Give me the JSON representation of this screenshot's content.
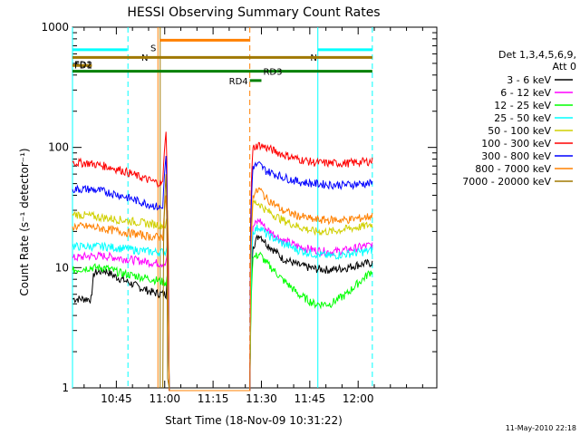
{
  "chart_data": {
    "type": "line",
    "title": "HESSI Observing Summary Count Rates",
    "xlabel": "Start Time (18-Nov-09 10:31:22)",
    "ylabel": "Count Rate (s⁻¹ detector⁻¹)",
    "yscale": "log",
    "ylim": [
      1,
      1000
    ],
    "xlim": [
      0,
      113
    ],
    "x_unit": "minutes after 10:31:22",
    "x_ticks": [
      {
        "x": 13.6,
        "label": "10:45"
      },
      {
        "x": 28.6,
        "label": "11:00"
      },
      {
        "x": 43.6,
        "label": "11:15"
      },
      {
        "x": 58.6,
        "label": "11:30"
      },
      {
        "x": 73.6,
        "label": "11:45"
      },
      {
        "x": 88.6,
        "label": "12:00"
      }
    ],
    "y_ticks": [
      {
        "y": 1,
        "label": "1"
      },
      {
        "y": 10,
        "label": "10"
      },
      {
        "y": 100,
        "label": "100"
      },
      {
        "y": 1000,
        "label": "1000"
      }
    ],
    "legend": {
      "header": [
        "Det 1,3,4,5,6,9,",
        "Att 0"
      ],
      "placement": "right"
    },
    "series": [
      {
        "name": "3 - 6 keV",
        "color": "#000000",
        "x": [
          0,
          6,
          6.5,
          10,
          13,
          20,
          25,
          29,
          29.5,
          30,
          55,
          56,
          58,
          60,
          65,
          70,
          75,
          80,
          85,
          88,
          93
        ],
        "y": [
          5.5,
          5.5,
          9,
          9.5,
          8.5,
          7,
          6.2,
          6.0,
          9,
          0,
          0,
          15,
          19,
          16,
          12,
          10.5,
          9.8,
          9.6,
          10,
          10.5,
          11
        ]
      },
      {
        "name": "6 - 12 keV",
        "color": "#ff00ff",
        "x": [
          0,
          5,
          10,
          15,
          20,
          25,
          29,
          29.5,
          30,
          55,
          56,
          58,
          60,
          65,
          70,
          75,
          80,
          85,
          90,
          93
        ],
        "y": [
          12,
          12.5,
          12.5,
          12,
          11.5,
          11,
          10.8,
          14,
          0,
          0,
          22,
          25,
          21,
          17,
          15,
          14,
          13.5,
          14,
          15,
          15.5
        ]
      },
      {
        "name": "12 - 25 keV",
        "color": "#00ff00",
        "x": [
          0,
          5,
          10,
          15,
          20,
          25,
          29,
          29.5,
          30,
          55,
          56,
          58,
          60,
          65,
          70,
          75,
          80,
          85,
          90,
          93
        ],
        "y": [
          9.5,
          10,
          10,
          9,
          8.5,
          8,
          7.5,
          9,
          0,
          0,
          12,
          13,
          11,
          8,
          6,
          5,
          5,
          6,
          8,
          9.5
        ]
      },
      {
        "name": "25 - 50 keV",
        "color": "#00ffff",
        "x": [
          0,
          5,
          10,
          15,
          20,
          25,
          29,
          29.5,
          30,
          55,
          56,
          58,
          60,
          65,
          70,
          75,
          80,
          85,
          90,
          93
        ],
        "y": [
          15,
          15,
          15,
          14.5,
          14,
          13.5,
          13.5,
          16,
          0,
          0,
          20,
          22,
          19,
          16,
          14,
          13,
          12.5,
          13,
          13.5,
          14
        ]
      },
      {
        "name": "50 - 100 keV",
        "color": "#d0d000",
        "x": [
          0,
          5,
          10,
          15,
          20,
          25,
          29,
          29.5,
          30,
          55,
          56,
          58,
          60,
          65,
          70,
          75,
          80,
          85,
          90,
          93
        ],
        "y": [
          28,
          27,
          26,
          25,
          24,
          23,
          22.5,
          30,
          0,
          0,
          35,
          34,
          30,
          25,
          22,
          20,
          20,
          21,
          22,
          23
        ]
      },
      {
        "name": "100 - 300 keV",
        "color": "#ff0000",
        "x": [
          0,
          5,
          10,
          15,
          20,
          25,
          28,
          29,
          29.5,
          30,
          55,
          56,
          58,
          60,
          65,
          70,
          75,
          80,
          85,
          90,
          93
        ],
        "y": [
          75,
          74,
          70,
          65,
          58,
          52,
          50,
          135,
          20,
          0,
          0,
          100,
          105,
          100,
          88,
          80,
          75,
          74,
          74,
          76,
          77
        ]
      },
      {
        "name": "300 - 800 keV",
        "color": "#0000ff",
        "x": [
          0,
          5,
          10,
          15,
          20,
          25,
          28,
          29,
          29.5,
          30,
          55,
          56,
          58,
          60,
          65,
          70,
          75,
          80,
          85,
          90,
          93
        ],
        "y": [
          45,
          45,
          43,
          40,
          36,
          33,
          31,
          85,
          10,
          0,
          0,
          70,
          72,
          64,
          57,
          52,
          50,
          49,
          49,
          50,
          50
        ]
      },
      {
        "name": "800 - 7000 keV",
        "color": "#ff8000",
        "x": [
          0,
          5,
          10,
          15,
          20,
          25,
          28,
          29,
          29.5,
          30,
          55,
          56,
          58,
          60,
          65,
          70,
          75,
          80,
          85,
          90,
          93
        ],
        "y": [
          22,
          22,
          21,
          20,
          19,
          18,
          18,
          40,
          8,
          0,
          0,
          40,
          45,
          38,
          30,
          27,
          25,
          25,
          25,
          26,
          27
        ]
      },
      {
        "name": "7000 - 20000 keV",
        "color": "#a07800",
        "x": [
          28,
          29,
          29.5,
          30
        ],
        "y": [
          1,
          60,
          1.2,
          1
        ]
      }
    ],
    "annotations": [
      {
        "label": "N",
        "color": "#00ffff",
        "x0": 0,
        "x1": 17,
        "y": 650
      },
      {
        "label": "N",
        "color": "#00ffff",
        "x0": 76,
        "x1": 93,
        "y": 650
      },
      {
        "label": "S",
        "color": "#ff8000",
        "x0": 27,
        "x1": 55,
        "y": 780
      },
      {
        "label": "FD1",
        "color": "#a07800",
        "x0": 0,
        "x1": 93,
        "y": 560
      },
      {
        "label": "FD2",
        "color": "#a07800",
        "x0": 0,
        "x1": 6,
        "y": 480
      },
      {
        "label": "RD3",
        "color": "#008000",
        "x0": 0,
        "x1": 93,
        "y": 430
      },
      {
        "label": "RD4",
        "color": "#008000",
        "x0": 55,
        "x1": 58.6,
        "y": 360
      }
    ],
    "vlines": [
      {
        "x": 0,
        "color": "#00ffff",
        "style": "solid"
      },
      {
        "x": 17.2,
        "color": "#00ffff",
        "style": "dashed"
      },
      {
        "x": 26.5,
        "color": "#ff8000",
        "style": "solid"
      },
      {
        "x": 27.2,
        "color": "#a07800",
        "style": "solid"
      },
      {
        "x": 55.0,
        "color": "#ff8000",
        "style": "dashed"
      },
      {
        "x": 76.1,
        "color": "#00ffff",
        "style": "solid"
      },
      {
        "x": 93.0,
        "color": "#00ffff",
        "style": "dashed"
      }
    ],
    "grid": false
  },
  "footer_date": "11-May-2010 22:18"
}
